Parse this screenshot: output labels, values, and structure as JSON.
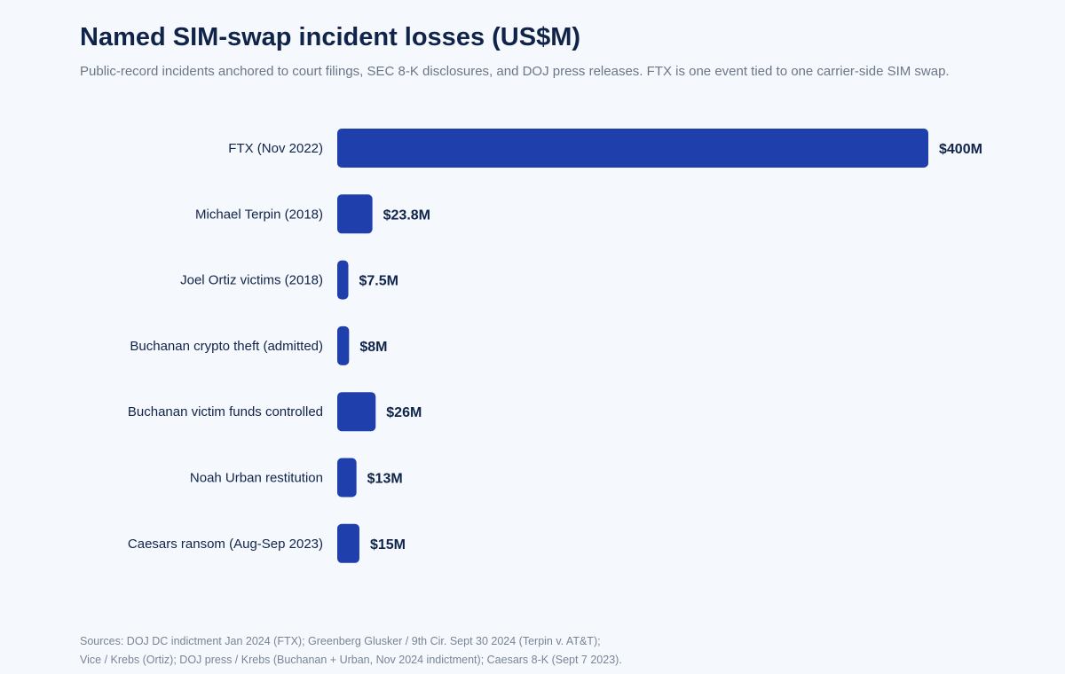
{
  "title": "Named SIM-swap incident losses (US$M)",
  "subtitle": "Public-record incidents anchored to court filings, SEC 8-K disclosures, and DOJ press releases. FTX is one event tied to one carrier-side SIM swap.",
  "sources": [
    "Sources: DOJ DC indictment Jan 2024 (FTX); Greenberg Glusker / 9th Cir. Sept 30 2024 (Terpin v. AT&T);",
    "Vice / Krebs (Ortiz); DOJ press / Krebs (Buchanan + Urban, Nov 2024 indictment); Caesars 8-K (Sept 7 2023)."
  ],
  "colors": {
    "bar": "#1f3fad",
    "label": "#10244a",
    "background": "#f5f8fd"
  },
  "chart_data": {
    "type": "bar",
    "orientation": "horizontal",
    "categories": [
      "FTX (Nov 2022)",
      "Michael Terpin (2018)",
      "Joel Ortiz victims (2018)",
      "Buchanan crypto theft (admitted)",
      "Buchanan victim funds controlled",
      "Noah Urban restitution",
      "Caesars ransom (Aug-Sep 2023)"
    ],
    "values": [
      400,
      23.8,
      7.5,
      8,
      26,
      13,
      15
    ],
    "data_labels": [
      "$400M",
      "$23.8M",
      "$7.5M",
      "$8M",
      "$26M",
      "$13M",
      "$15M"
    ],
    "xlim": [
      0,
      400
    ],
    "grid": false,
    "legend": "none"
  }
}
